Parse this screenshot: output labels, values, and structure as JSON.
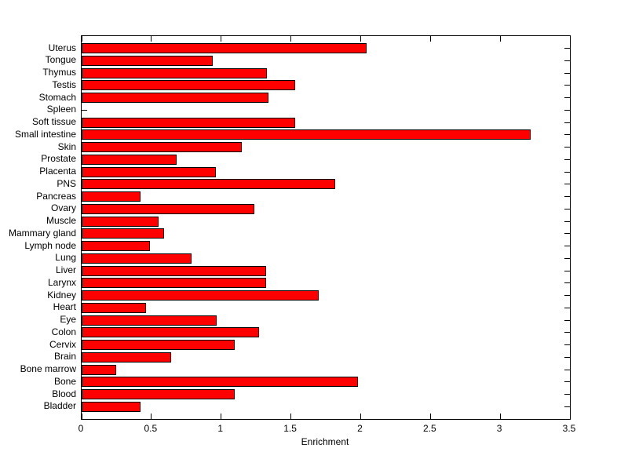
{
  "chart_data": {
    "type": "bar",
    "orientation": "horizontal",
    "title": "",
    "xlabel": "Enrichment",
    "ylabel": "",
    "xlim": [
      0,
      3.5
    ],
    "x_ticks": [
      0,
      0.5,
      1,
      1.5,
      2,
      2.5,
      3,
      3.5
    ],
    "x_tick_labels": [
      "0",
      "0.5",
      "1",
      "1.5",
      "2",
      "2.5",
      "3",
      "3.5"
    ],
    "grid": false,
    "legend": "none",
    "bar_fill_color": "#ff0000",
    "bar_edge_color": "#000000",
    "axis_color": "#000000",
    "background_color": "#ffffff",
    "categories": [
      "Uterus",
      "Tongue",
      "Thymus",
      "Testis",
      "Stomach",
      "Spleen",
      "Soft tissue",
      "Small intestine",
      "Skin",
      "Prostate",
      "Placenta",
      "PNS",
      "Pancreas",
      "Ovary",
      "Muscle",
      "Mammary gland",
      "Lymph node",
      "Lung",
      "Liver",
      "Larynx",
      "Kidney",
      "Heart",
      "Eye",
      "Colon",
      "Cervix",
      "Brain",
      "Bone marrow",
      "Bone",
      "Blood",
      "Bladder"
    ],
    "values": [
      2.04,
      0.94,
      1.33,
      1.53,
      1.34,
      0,
      1.53,
      3.22,
      1.15,
      0.68,
      0.96,
      1.82,
      0.42,
      1.24,
      0.55,
      0.59,
      0.49,
      0.79,
      1.32,
      1.32,
      1.7,
      0.46,
      0.97,
      1.27,
      1.1,
      0.64,
      0.25,
      1.98,
      1.1,
      0.42
    ]
  }
}
